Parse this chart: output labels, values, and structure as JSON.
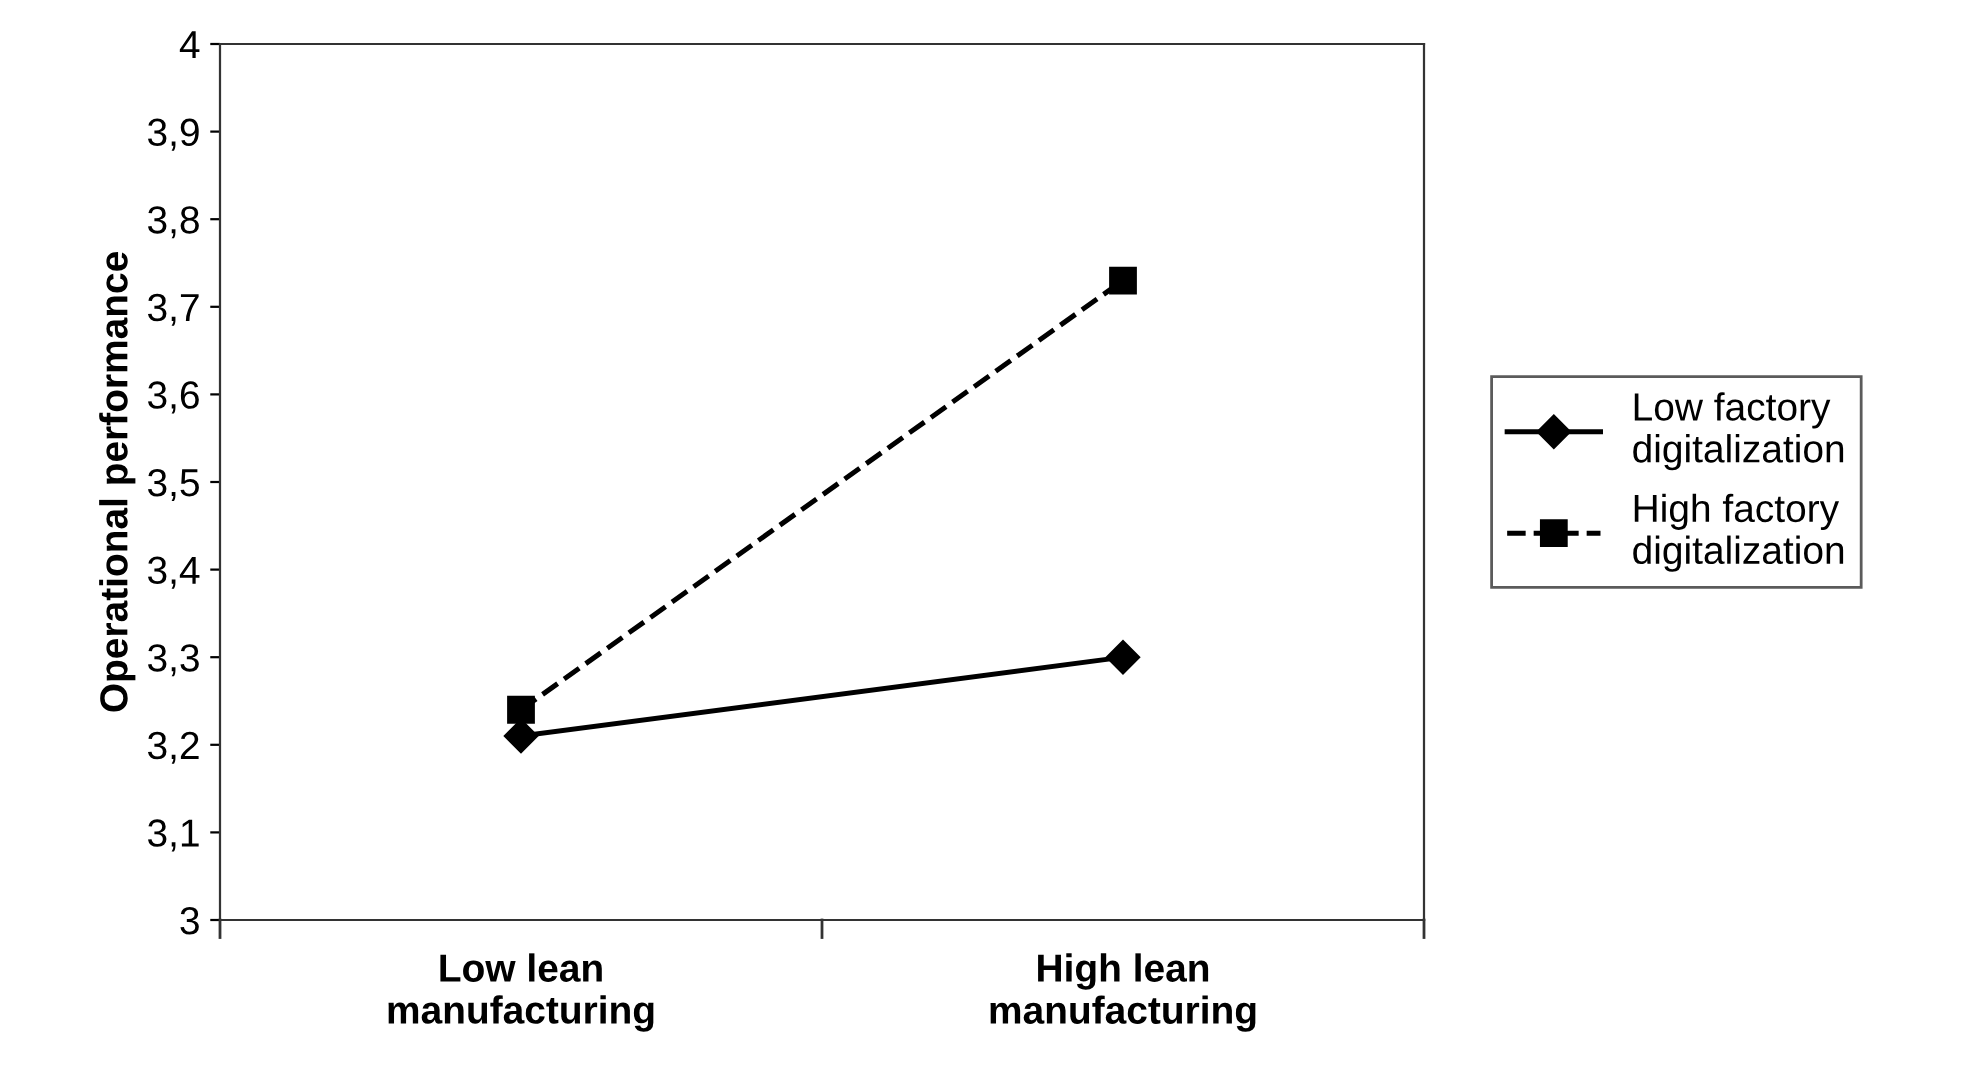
{
  "chart_data": {
    "type": "line",
    "ylabel": "Operational performance",
    "categories": [
      "Low lean\nmanufacturing",
      "High lean\nmanufacturing"
    ],
    "series": [
      {
        "name": "Low factory\ndigitalization",
        "color": "#000000",
        "values": [
          3.21,
          3.3
        ],
        "marker": "diamond",
        "line_style": "solid"
      },
      {
        "name": "High factory\ndigitalization",
        "color": "#000000",
        "values": [
          3.24,
          3.73
        ],
        "marker": "square",
        "line_style": "dashed"
      }
    ],
    "ylim": [
      3,
      4
    ],
    "yticks": [
      {
        "value": 3,
        "label": "3"
      },
      {
        "value": 3.1,
        "label": "3,1"
      },
      {
        "value": 3.2,
        "label": "3,2"
      },
      {
        "value": 3.3,
        "label": "3,3"
      },
      {
        "value": 3.4,
        "label": "3,4"
      },
      {
        "value": 3.5,
        "label": "3,5"
      },
      {
        "value": 3.6,
        "label": "3,6"
      },
      {
        "value": 3.7,
        "label": "3,7"
      },
      {
        "value": 3.8,
        "label": "3,8"
      },
      {
        "value": 3.9,
        "label": "3,9"
      },
      {
        "value": 4,
        "label": "4"
      }
    ],
    "grid": false,
    "legend": "right"
  }
}
